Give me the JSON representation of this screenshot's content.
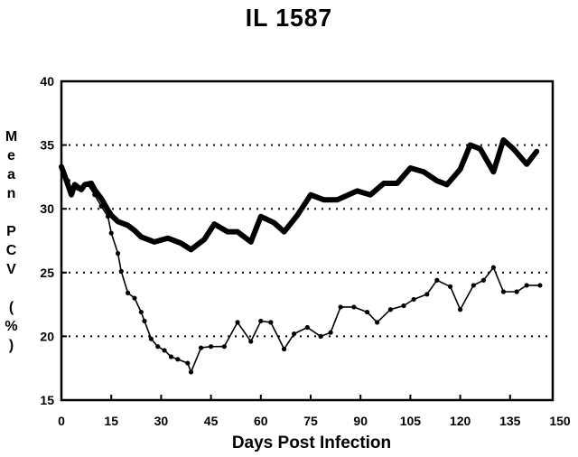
{
  "chart_data": {
    "type": "line",
    "title": "IL 1587",
    "xlabel": "Days Post Infection",
    "ylabel": "Mean PCV (%)",
    "xlim": [
      0,
      150
    ],
    "ylim": [
      15,
      40
    ],
    "xticks": [
      0,
      15,
      30,
      45,
      60,
      75,
      90,
      105,
      120,
      135,
      150
    ],
    "yticks": [
      40,
      35,
      30,
      25,
      20,
      15
    ],
    "grid": "horizontal dotted",
    "legend": "none",
    "series": [
      {
        "color": "#000000",
        "x": [
          0,
          1,
          3,
          4,
          6,
          7,
          9,
          10,
          12,
          14,
          15,
          17,
          20,
          22,
          24,
          28,
          32,
          36,
          39,
          43,
          46,
          50,
          53,
          57,
          60,
          64,
          67,
          71,
          75,
          79,
          83,
          89,
          93,
          97,
          101,
          105,
          109,
          113,
          116,
          120,
          123,
          126,
          130,
          133,
          136,
          140,
          143
        ],
        "y": [
          33.3,
          32.6,
          31.1,
          31.9,
          31.5,
          31.9,
          32.0,
          31.5,
          30.8,
          29.9,
          29.5,
          29.0,
          28.7,
          28.3,
          27.8,
          27.4,
          27.7,
          27.3,
          26.8,
          27.6,
          28.8,
          28.2,
          28.2,
          27.4,
          29.4,
          28.9,
          28.2,
          29.5,
          31.1,
          30.7,
          30.7,
          31.4,
          31.1,
          32.0,
          32.0,
          33.2,
          32.9,
          32.2,
          31.9,
          33.1,
          35.0,
          34.7,
          32.9,
          35.4,
          34.7,
          33.5,
          34.5
        ]
      },
      {
        "color": "#000000",
        "x": [
          0,
          2,
          3,
          5,
          8,
          10,
          12,
          14,
          15,
          17,
          18,
          20,
          22,
          24,
          25,
          27,
          29,
          31,
          33,
          35,
          38,
          39,
          42,
          45,
          49,
          53,
          57,
          60,
          63,
          67,
          70,
          74,
          78,
          81,
          84,
          88,
          92,
          95,
          99,
          103,
          106,
          110,
          113,
          117,
          120,
          124,
          127,
          130,
          133,
          137,
          140,
          144
        ],
        "y": [
          33.3,
          32.2,
          31.5,
          31.6,
          31.9,
          31.1,
          30.2,
          29.4,
          28.1,
          26.5,
          25.1,
          23.4,
          23.0,
          21.9,
          21.2,
          19.8,
          19.2,
          18.9,
          18.4,
          18.2,
          17.9,
          17.2,
          19.1,
          19.2,
          19.2,
          21.1,
          19.6,
          21.2,
          21.1,
          19.0,
          20.2,
          20.7,
          20.0,
          20.3,
          22.3,
          22.3,
          21.9,
          21.1,
          22.1,
          22.4,
          22.9,
          23.3,
          24.4,
          23.9,
          22.1,
          24.0,
          24.4,
          25.4,
          23.5,
          23.5,
          24.0,
          24.0
        ]
      }
    ]
  }
}
